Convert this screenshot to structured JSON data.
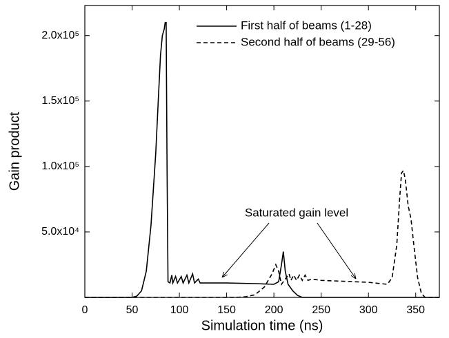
{
  "chart_data": {
    "type": "line",
    "x_label": "Simulation time (ns)",
    "y_label": "Gain product",
    "annotation": "Saturated gain level",
    "xlim": [
      0,
      375
    ],
    "ylim": [
      0,
      223000
    ],
    "xticks": [
      0,
      50,
      100,
      150,
      200,
      250,
      300,
      350
    ],
    "yticks": [
      {
        "value": 50000,
        "label": "5.0x10⁴"
      },
      {
        "value": 100000,
        "label": "1.0x10⁵"
      },
      {
        "value": 150000,
        "label": "1.5x10⁵"
      },
      {
        "value": 200000,
        "label": "2.0x10⁵"
      }
    ],
    "legend": "upper right",
    "series": [
      {
        "name": "First half of beams (1-28)",
        "color": "#000000",
        "dash": "solid",
        "x": [
          0,
          50,
          55,
          60,
          65,
          70,
          75,
          78,
          80,
          82,
          84,
          85,
          86,
          87,
          88,
          90,
          92,
          93,
          96,
          98,
          102,
          104,
          108,
          110,
          114,
          116,
          120,
          122,
          130,
          150,
          180,
          200,
          205,
          208,
          210,
          212,
          215,
          220,
          225,
          230,
          375
        ],
        "values": [
          0,
          0,
          1000,
          5000,
          20000,
          55000,
          110000,
          155000,
          185000,
          200000,
          205000,
          210000,
          210000,
          100000,
          12000,
          11000,
          17000,
          11000,
          16000,
          11000,
          16000,
          11000,
          17000,
          11000,
          18000,
          11000,
          14000,
          11000,
          11000,
          11000,
          10500,
          10000,
          12000,
          25000,
          35000,
          20000,
          10000,
          5000,
          1500,
          0,
          0
        ]
      },
      {
        "name": "Second half of beams (29-56)",
        "color": "#000000",
        "dash": "dashed",
        "x": [
          0,
          160,
          170,
          180,
          190,
          198,
          202,
          205,
          208,
          210,
          213,
          216,
          218,
          221,
          224,
          227,
          230,
          233,
          236,
          240,
          250,
          300,
          320,
          325,
          330,
          333,
          335,
          337,
          339,
          342,
          345,
          348,
          352,
          356,
          360,
          375
        ],
        "values": [
          0,
          0,
          500,
          2000,
          8000,
          18000,
          25000,
          20000,
          10000,
          12000,
          15000,
          18000,
          13000,
          17000,
          13000,
          17000,
          13000,
          17000,
          13000,
          14000,
          13000,
          11500,
          10000,
          15000,
          40000,
          75000,
          95000,
          97000,
          90000,
          70000,
          60000,
          40000,
          15000,
          3000,
          0,
          0
        ]
      }
    ]
  }
}
